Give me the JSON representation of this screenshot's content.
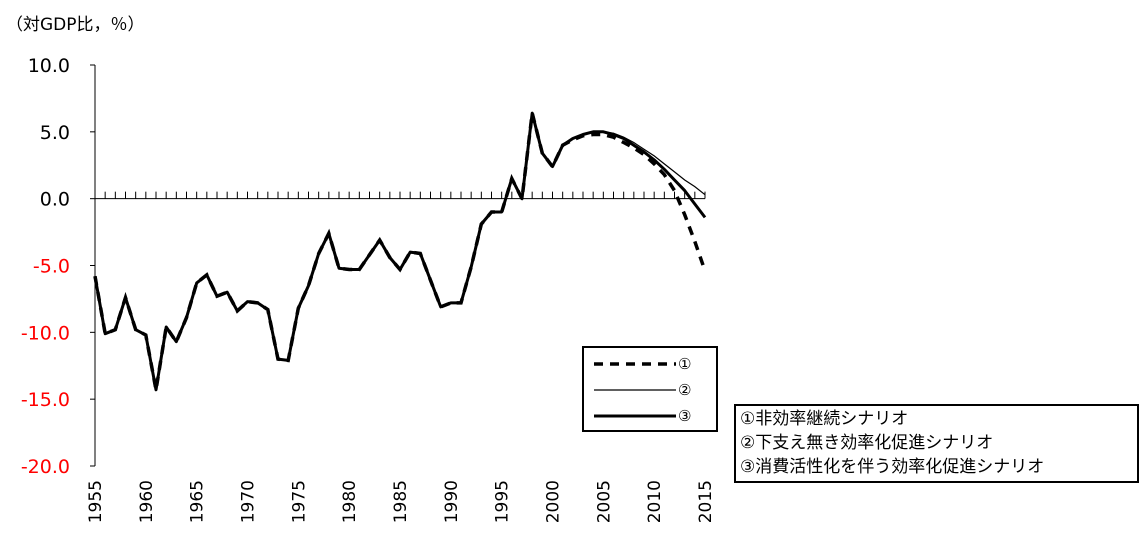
{
  "chart_data": {
    "type": "line",
    "unit_label": "（対GDP比，％）",
    "x": [
      1955,
      1956,
      1957,
      1958,
      1959,
      1960,
      1961,
      1962,
      1963,
      1964,
      1965,
      1966,
      1967,
      1968,
      1969,
      1970,
      1971,
      1972,
      1973,
      1974,
      1975,
      1976,
      1977,
      1978,
      1979,
      1980,
      1981,
      1982,
      1983,
      1984,
      1985,
      1986,
      1987,
      1988,
      1989,
      1990,
      1991,
      1992,
      1993,
      1994,
      1995,
      1996,
      1997,
      1998,
      1999,
      2000,
      2001,
      2002,
      2003,
      2004,
      2005,
      2006,
      2007,
      2008,
      2009,
      2010,
      2011,
      2012,
      2013,
      2014,
      2015
    ],
    "x_ticks": [
      "1955",
      "1960",
      "1965",
      "1970",
      "1975",
      "1980",
      "1985",
      "1990",
      "1995",
      "2000",
      "2005",
      "2010",
      "2015"
    ],
    "ylim": [
      -20,
      10
    ],
    "y_ticks": [
      {
        "value": 10,
        "label": "10.0",
        "color": "#000000"
      },
      {
        "value": 5,
        "label": "5.0",
        "color": "#000000"
      },
      {
        "value": 0,
        "label": "0.0",
        "color": "#000000"
      },
      {
        "value": -5,
        "label": "-5.0",
        "color": "#ff0000"
      },
      {
        "value": -10,
        "label": "-10.0",
        "color": "#ff0000"
      },
      {
        "value": -15,
        "label": "-15.0",
        "color": "#ff0000"
      },
      {
        "value": -20,
        "label": "-20.0",
        "color": "#ff0000"
      }
    ],
    "series": [
      {
        "name": "①",
        "style": "dashed",
        "values": [
          -5.8,
          -10.1,
          -9.8,
          -7.4,
          -9.8,
          -10.2,
          -14.3,
          -9.6,
          -10.7,
          -8.9,
          -6.3,
          -5.7,
          -7.3,
          -7.0,
          -8.4,
          -7.7,
          -7.8,
          -8.3,
          -12.0,
          -12.1,
          -8.2,
          -6.5,
          -4.1,
          -2.6,
          -5.2,
          -5.3,
          -5.3,
          -4.2,
          -3.1,
          -4.4,
          -5.3,
          -4.0,
          -4.1,
          -6.1,
          -8.1,
          -7.8,
          -7.8,
          -5.1,
          -1.9,
          -1.0,
          -1.0,
          1.5,
          0.0,
          6.4,
          3.4,
          2.4,
          4.0,
          4.4,
          4.7,
          4.8,
          4.8,
          4.6,
          4.2,
          3.8,
          3.3,
          2.6,
          1.8,
          0.6,
          -1.2,
          -3.2,
          -5.4
        ]
      },
      {
        "name": "②",
        "style": "thin",
        "values": [
          -5.8,
          -10.1,
          -9.8,
          -7.4,
          -9.8,
          -10.2,
          -14.3,
          -9.6,
          -10.7,
          -8.9,
          -6.3,
          -5.7,
          -7.3,
          -7.0,
          -8.4,
          -7.7,
          -7.8,
          -8.3,
          -12.0,
          -12.1,
          -8.2,
          -6.5,
          -4.1,
          -2.6,
          -5.2,
          -5.3,
          -5.3,
          -4.2,
          -3.1,
          -4.4,
          -5.3,
          -4.0,
          -4.1,
          -6.1,
          -8.1,
          -7.8,
          -7.8,
          -5.1,
          -1.9,
          -1.0,
          -1.0,
          1.5,
          0.0,
          6.4,
          3.4,
          2.4,
          4.0,
          4.5,
          4.8,
          5.0,
          5.0,
          4.9,
          4.6,
          4.2,
          3.7,
          3.2,
          2.6,
          2.0,
          1.4,
          0.9,
          0.3
        ]
      },
      {
        "name": "③",
        "style": "thick",
        "values": [
          -5.8,
          -10.1,
          -9.8,
          -7.4,
          -9.8,
          -10.2,
          -14.3,
          -9.6,
          -10.7,
          -8.9,
          -6.3,
          -5.7,
          -7.3,
          -7.0,
          -8.4,
          -7.7,
          -7.8,
          -8.3,
          -12.0,
          -12.1,
          -8.2,
          -6.5,
          -4.1,
          -2.6,
          -5.2,
          -5.3,
          -5.3,
          -4.2,
          -3.1,
          -4.4,
          -5.3,
          -4.0,
          -4.1,
          -6.1,
          -8.1,
          -7.8,
          -7.8,
          -5.1,
          -1.9,
          -1.0,
          -1.0,
          1.5,
          0.0,
          6.4,
          3.4,
          2.4,
          4.0,
          4.5,
          4.8,
          5.0,
          5.0,
          4.8,
          4.5,
          4.0,
          3.5,
          2.9,
          2.2,
          1.4,
          0.6,
          -0.4,
          -1.4
        ]
      }
    ],
    "legend": {
      "placement": "lower-right"
    },
    "grid": false
  },
  "scenarios": [
    "①非効率継続シナリオ",
    "②下支え無き効率化促進シナリオ",
    "③消費活性化を伴う効率化促進シナリオ"
  ]
}
